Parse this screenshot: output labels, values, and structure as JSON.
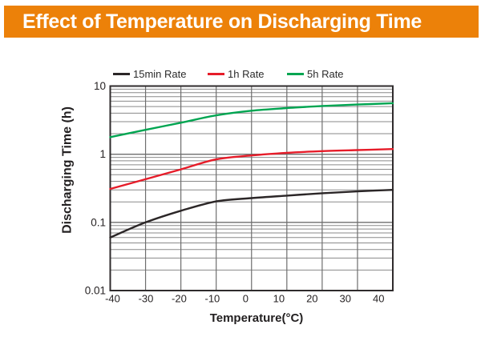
{
  "header": {
    "title": "Effect of Temperature on Discharging Time",
    "bg_color": "#ec8109",
    "text_color": "#ffffff"
  },
  "chart_data": {
    "type": "line",
    "title": "Effect of Temperature on Discharging Time",
    "x": [
      -40,
      -30,
      -20,
      -10,
      0,
      10,
      20,
      30,
      40
    ],
    "x_ticks": [
      "-40",
      "-30",
      "-20",
      "-10",
      "0",
      "10",
      "20",
      "30",
      "40"
    ],
    "y_ticks": [
      "10",
      "1",
      "0.1",
      "0.01"
    ],
    "y_scale": "log",
    "xlim": [
      -40,
      40
    ],
    "ylim": [
      0.01,
      10
    ],
    "grid": true,
    "legend_position": "top",
    "xlabel": "Temperature(°C)",
    "ylabel": "Discharging Time (h)",
    "series": [
      {
        "name": "15min Rate",
        "color": "#2b2627",
        "values": [
          0.06,
          0.1,
          0.148,
          0.203,
          0.227,
          0.247,
          0.268,
          0.285,
          0.3
        ]
      },
      {
        "name": "1h Rate",
        "color": "#e61c29",
        "values": [
          0.31,
          0.43,
          0.6,
          0.84,
          0.96,
          1.05,
          1.11,
          1.15,
          1.19
        ]
      },
      {
        "name": "5h Rate",
        "color": "#00a551",
        "values": [
          1.78,
          2.28,
          2.9,
          3.72,
          4.35,
          4.75,
          5.1,
          5.35,
          5.6
        ]
      }
    ]
  },
  "colors": {
    "grid_minor": "#8a8a8a",
    "grid_major": "#6e6e6e",
    "plot_border": "#2f2b2c",
    "tick_text": "#272324"
  }
}
